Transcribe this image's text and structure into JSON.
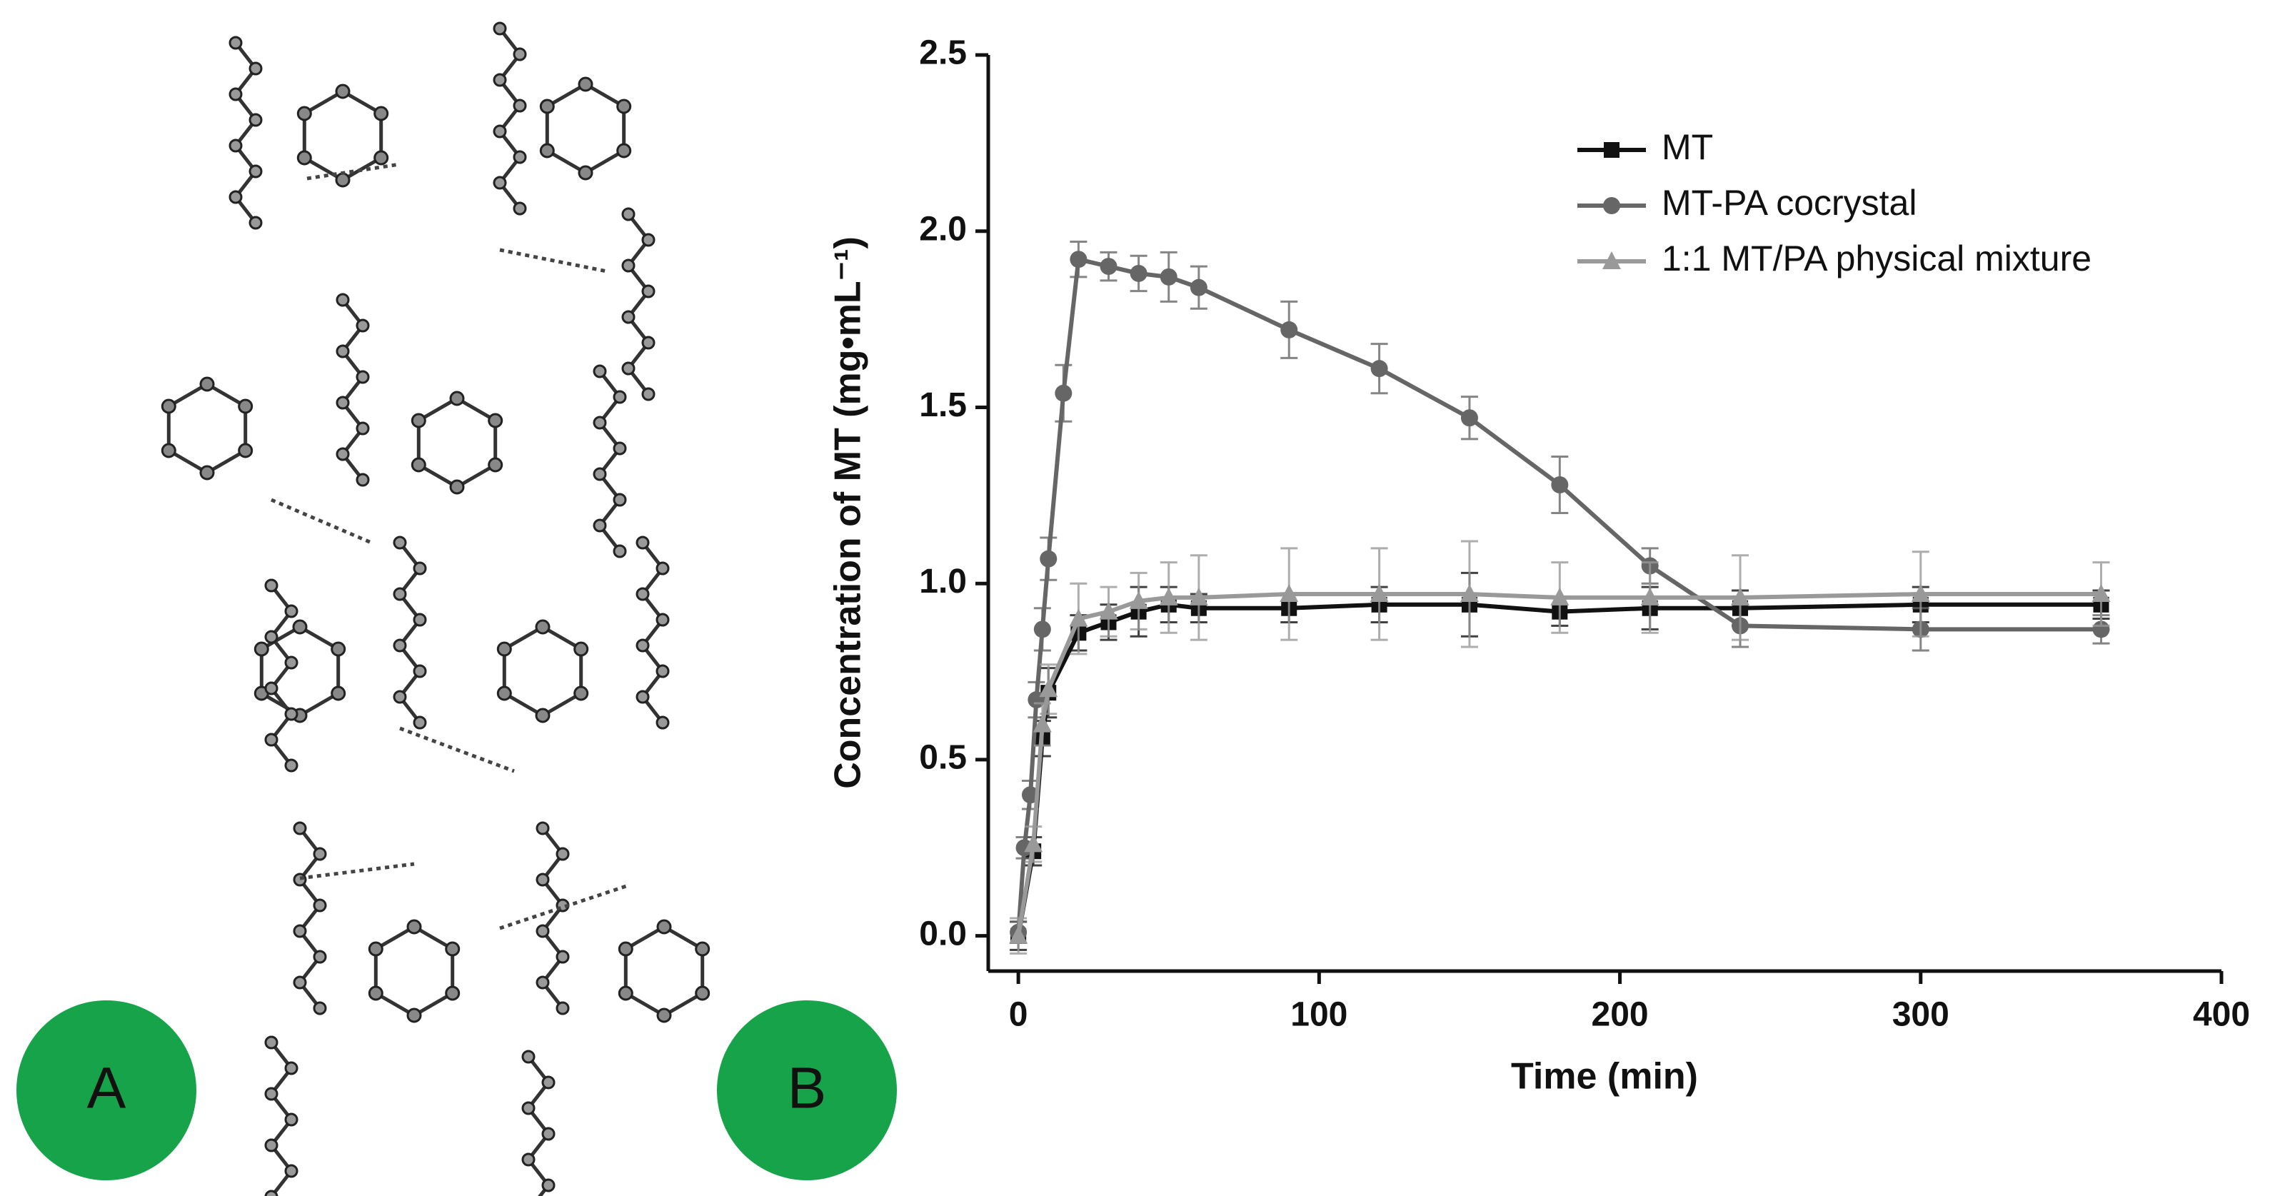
{
  "panels": [
    "A",
    "B"
  ],
  "chart_data": {
    "type": "line",
    "xlabel": "Time (min)",
    "ylabel": "Concentration of MT (mg•mL⁻¹)",
    "xlim": [
      -10,
      400
    ],
    "xticks": [
      0,
      100,
      200,
      300,
      400
    ],
    "ylim": [
      -0.1,
      2.5
    ],
    "yticks": [
      {
        "value": 0,
        "label": "0.0"
      },
      0.5,
      {
        "value": 1,
        "label": "1.0"
      },
      1.5,
      {
        "value": 2,
        "label": "2.0"
      },
      2.5
    ],
    "legend": "upper right",
    "series": [
      {
        "name": "MT",
        "color": "#111111",
        "marker": "square",
        "x": [
          0,
          5,
          8,
          10,
          20,
          30,
          40,
          50,
          60,
          90,
          120,
          150,
          180,
          210,
          240,
          300,
          360
        ],
        "values": [
          0,
          0.24,
          0.56,
          0.69,
          0.86,
          0.89,
          0.92,
          0.94,
          0.93,
          0.93,
          0.94,
          0.94,
          0.92,
          0.93,
          0.93,
          0.94,
          0.94
        ],
        "errors": [
          0.04,
          0.04,
          0.05,
          0.07,
          0.05,
          0.05,
          0.07,
          0.05,
          0.04,
          0.04,
          0.05,
          0.09,
          0.04,
          0.06,
          0.05,
          0.05,
          0.04
        ]
      },
      {
        "name": "MT-PA cocrystal",
        "color": "#666666",
        "marker": "circle",
        "x": [
          0,
          2,
          4,
          6,
          8,
          10,
          15,
          20,
          30,
          40,
          50,
          60,
          90,
          120,
          150,
          180,
          210,
          240,
          300,
          360
        ],
        "values": [
          0.01,
          0.25,
          0.4,
          0.67,
          0.87,
          1.07,
          1.54,
          1.92,
          1.9,
          1.88,
          1.87,
          1.84,
          1.72,
          1.61,
          1.47,
          1.28,
          1.05,
          0.88,
          0.87,
          0.87
        ],
        "errors": [
          0.03,
          0.03,
          0.04,
          0.05,
          0.06,
          0.06,
          0.08,
          0.05,
          0.04,
          0.05,
          0.07,
          0.06,
          0.08,
          0.07,
          0.06,
          0.08,
          0.05,
          0.06,
          0.06,
          0.04
        ]
      },
      {
        "name": "1:1 MT/PA physical mixture",
        "color": "#999999",
        "marker": "triangle",
        "x": [
          0,
          5,
          8,
          10,
          20,
          30,
          40,
          50,
          60,
          90,
          120,
          150,
          180,
          210,
          240,
          300,
          360
        ],
        "values": [
          0,
          0.26,
          0.6,
          0.7,
          0.9,
          0.92,
          0.95,
          0.96,
          0.96,
          0.97,
          0.97,
          0.97,
          0.96,
          0.96,
          0.96,
          0.97,
          0.97
        ],
        "errors": [
          0.05,
          0.05,
          0.06,
          0.07,
          0.1,
          0.07,
          0.08,
          0.1,
          0.12,
          0.13,
          0.13,
          0.15,
          0.1,
          0.1,
          0.12,
          0.12,
          0.09
        ]
      }
    ]
  }
}
